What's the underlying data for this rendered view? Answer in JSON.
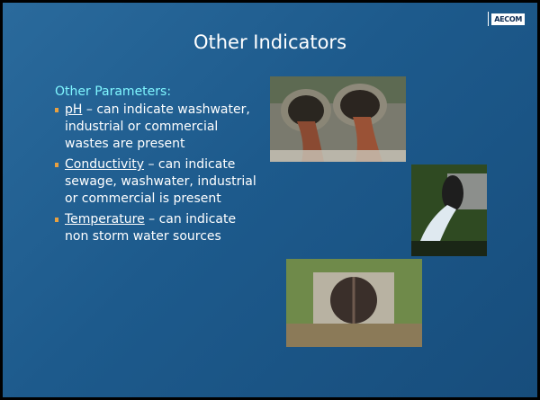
{
  "slide": {
    "logo": "AECOM",
    "title": "Other Indicators",
    "subheading": "Other Parameters:",
    "bullets": [
      {
        "term": "pH",
        "text": " – can indicate washwater, industrial or commercial wastes are present"
      },
      {
        "term": "Conductivity",
        "text": " – can indicate sewage, washwater, industrial or commercial is present"
      },
      {
        "term": "Temperature",
        "text": " – can indicate non storm water sources"
      }
    ]
  }
}
